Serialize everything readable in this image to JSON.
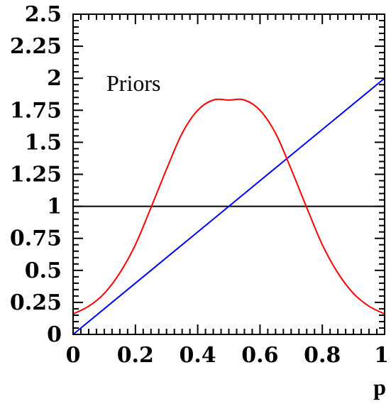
{
  "chart_data": {
    "type": "line",
    "title": "",
    "annotation": "Priors",
    "xlabel": "p",
    "ylabel": "",
    "xlim": [
      0,
      1
    ],
    "ylim": [
      0,
      2.5
    ],
    "grid": false,
    "x_ticks": [
      "0",
      "0.2",
      "0.4",
      "0.6",
      "0.8",
      "1"
    ],
    "y_ticks": [
      "0",
      "0.25",
      "0.5",
      "0.75",
      "1",
      "1.25",
      "1.5",
      "1.75",
      "2",
      "2.25",
      "2.5"
    ],
    "series": [
      {
        "color": "#000000",
        "x": [
          0,
          1
        ],
        "y": [
          1,
          1
        ]
      },
      {
        "color": "#0000ff",
        "x": [
          0,
          0.25,
          0.5,
          0.75,
          1
        ],
        "y": [
          0,
          0.5,
          1,
          1.5,
          2
        ]
      },
      {
        "color": "#ff0000",
        "x": [
          0,
          0.05,
          0.1,
          0.15,
          0.2,
          0.25,
          0.3,
          0.35,
          0.4,
          0.45,
          0.5,
          0.55,
          0.6,
          0.65,
          0.7,
          0.75,
          0.8,
          0.85,
          0.9,
          0.95,
          1
        ],
        "y": [
          0.16,
          0.22,
          0.32,
          0.48,
          0.7,
          0.99,
          1.29,
          1.57,
          1.75,
          1.83,
          1.83,
          1.83,
          1.75,
          1.57,
          1.29,
          0.99,
          0.7,
          0.48,
          0.32,
          0.22,
          0.16
        ]
      }
    ]
  }
}
